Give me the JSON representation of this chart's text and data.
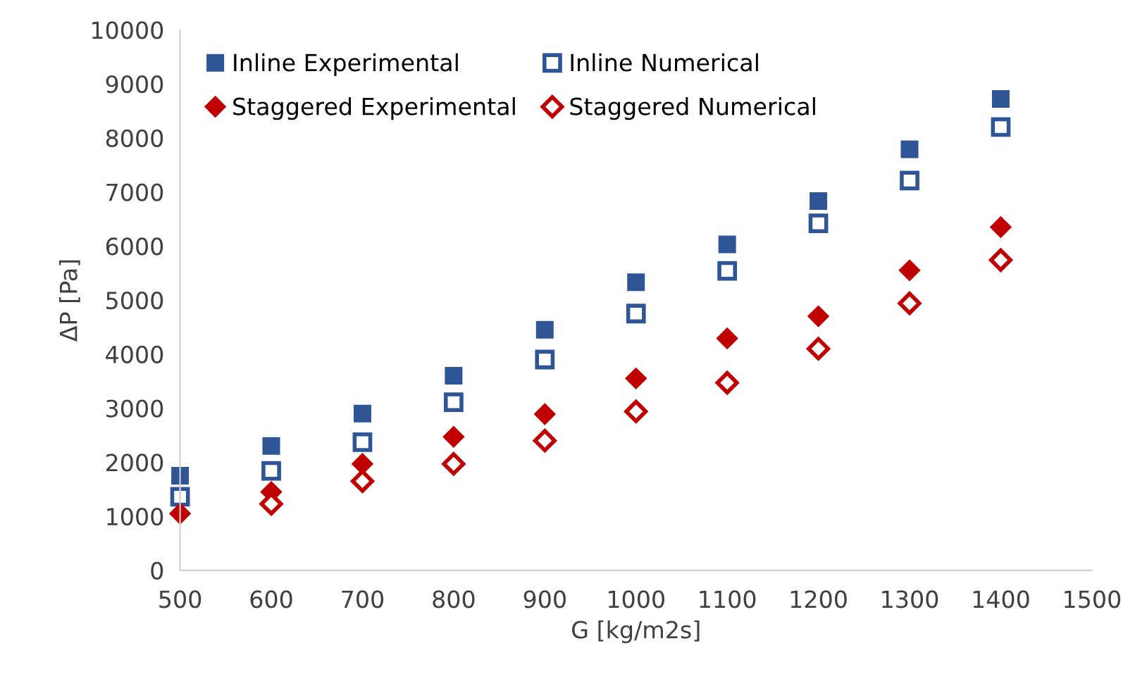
{
  "chart_data": {
    "type": "scatter",
    "xlabel": "G [kg/m2s]",
    "ylabel": "ΔP [Pa]",
    "xlim": [
      500,
      1500
    ],
    "xticks": [
      500,
      600,
      700,
      800,
      900,
      1000,
      1100,
      1200,
      1300,
      1400,
      1500
    ],
    "ylim": [
      0,
      10000
    ],
    "yticks": [
      0,
      1000,
      2000,
      3000,
      4000,
      5000,
      6000,
      7000,
      8000,
      9000,
      10000
    ],
    "grid": false,
    "legend": "top left",
    "x": [
      500,
      600,
      700,
      800,
      900,
      1000,
      1100,
      1200,
      1300,
      1400
    ],
    "series": [
      {
        "name": "Inline Experimental",
        "color": "#2f5597",
        "marker": "square",
        "values": [
          1750,
          2300,
          2900,
          3600,
          4450,
          5330,
          6030,
          6830,
          7790,
          8720
        ]
      },
      {
        "name": "Inline Numerical",
        "color": "#2f5597",
        "marker": "square",
        "values": [
          1360,
          1840,
          2370,
          3110,
          3900,
          4750,
          5540,
          6420,
          7210,
          8200
        ]
      },
      {
        "name": "Staggered Experimental",
        "color": "#c00000",
        "marker": "diamond",
        "values": [
          1050,
          1450,
          1970,
          2470,
          2890,
          3550,
          4290,
          4700,
          5550,
          6350
        ]
      },
      {
        "name": "Staggered Numerical",
        "color": "#c00000",
        "marker": "diamond",
        "values": [
          null,
          1230,
          1650,
          1970,
          2400,
          2940,
          3470,
          4100,
          4940,
          5740
        ]
      }
    ]
  }
}
